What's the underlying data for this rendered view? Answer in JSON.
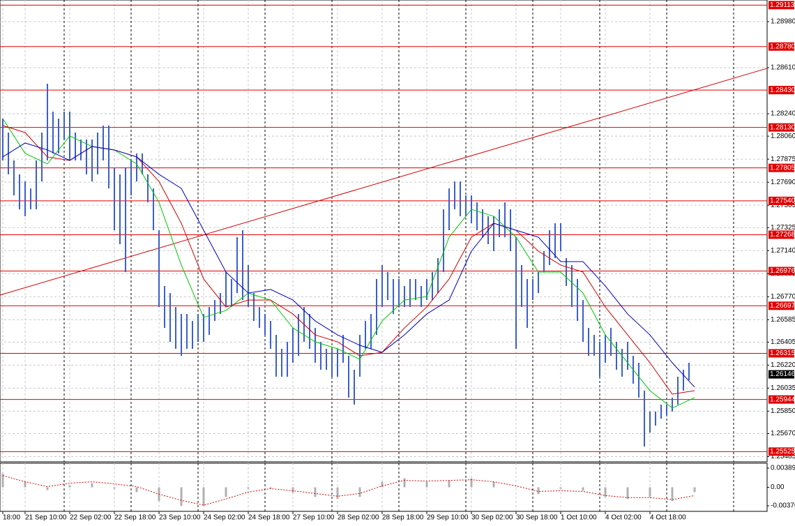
{
  "chart_data": {
    "type": "ohlc",
    "xlim": [
      -0.5,
      137
    ],
    "ylim": [
      1.25443,
      1.29154
    ],
    "yticks": [
      {
        "value": 1.2898,
        "label": "1.28980"
      },
      {
        "value": 1.2861,
        "label": "1.28610"
      },
      {
        "value": 1.2824,
        "label": "1.28240"
      },
      {
        "value": 1.2806,
        "label": "1.28060"
      },
      1.27875,
      {
        "value": 1.2769,
        "label": "1.27690"
      },
      1.27505,
      1.27325,
      {
        "value": 1.2714,
        "label": "1.27140"
      },
      1.26955,
      {
        "value": 1.2677,
        "label": "1.26770"
      },
      1.26585,
      1.26405,
      {
        "value": 1.2622,
        "label": "1.26220"
      },
      1.26035,
      {
        "value": 1.2585,
        "label": "1.25850"
      },
      {
        "value": 1.2567,
        "label": "1.25670"
      },
      1.25485
    ],
    "xticks": [
      {
        "value": 0,
        "label": "18:00"
      },
      {
        "value": 4,
        "label": "21 Sep 10:00"
      },
      {
        "value": 12,
        "label": "22 Sep 02:00"
      },
      {
        "value": 20,
        "label": "22 Sep 18:00"
      },
      {
        "value": 28,
        "label": "23 Sep 10:00"
      },
      {
        "value": 36,
        "label": "24 Sep 02:00"
      },
      {
        "value": 44,
        "label": "24 Sep 18:00"
      },
      {
        "value": 52,
        "label": "27 Sep 10:00"
      },
      {
        "value": 60,
        "label": "28 Sep 02:00"
      },
      {
        "value": 68,
        "label": "28 Sep 18:00"
      },
      {
        "value": 76,
        "label": "29 Sep 10:00"
      },
      {
        "value": 84,
        "label": "30 Sep 02:00"
      },
      {
        "value": 92,
        "label": "30 Sep 18:00"
      },
      {
        "value": 100,
        "label": "1 Oct 10:00"
      },
      {
        "value": 108,
        "label": "4 Oct 02:00"
      },
      {
        "value": 116,
        "label": "4 Oct 18:00"
      }
    ],
    "day_separators": [
      11,
      23,
      35,
      47,
      59,
      71,
      83,
      95,
      107,
      119,
      131
    ],
    "grid": true,
    "bars": {
      "color": "#3a5fcd",
      "high": [
        1.28201,
        1.28089,
        1.27865,
        1.27753,
        1.27696,
        1.2764,
        1.27865,
        1.28089,
        1.28481,
        1.28257,
        1.28201,
        1.28257,
        1.28257,
        1.28089,
        1.28033,
        1.28033,
        1.28033,
        1.28089,
        1.28145,
        1.28145,
        1.27809,
        1.27753,
        1.27809,
        1.27865,
        1.27921,
        1.27921,
        1.27753,
        1.2764,
        1.27304,
        1.26856,
        1.26799,
        1.26687,
        1.26631,
        1.26631,
        1.26575,
        1.26631,
        1.26631,
        1.26687,
        1.26743,
        1.26799,
        1.26968,
        1.26912,
        1.27248,
        1.27304,
        1.27024,
        1.26799,
        1.26687,
        1.26631,
        1.26575,
        1.26463,
        1.26351,
        1.26407,
        1.26519,
        1.26631,
        1.26687,
        1.26631,
        1.26519,
        1.26407,
        1.26351,
        1.26351,
        1.26351,
        1.26463,
        1.26295,
        1.26183,
        1.26463,
        1.26575,
        1.26631,
        1.26912,
        1.27024,
        1.26968,
        1.26912,
        1.26912,
        1.26856,
        1.26912,
        1.26912,
        1.26856,
        1.26912,
        1.26968,
        1.2708,
        1.27472,
        1.2764,
        1.27696,
        1.27696,
        1.27584,
        1.27584,
        1.27528,
        1.27472,
        1.27416,
        1.27416,
        1.27472,
        1.27528,
        1.27472,
        1.27248,
        1.27024,
        1.26912,
        1.26912,
        1.26968,
        1.27136,
        1.27304,
        1.2736,
        1.2736,
        1.2708,
        1.27024,
        1.26912,
        1.26743,
        1.26519,
        1.26463,
        1.26407,
        1.26463,
        1.26519,
        1.26407,
        1.26351,
        1.26407,
        1.26295,
        1.26239,
        1.26015,
        1.25847,
        1.25847,
        1.25903,
        1.25903,
        1.25959,
        1.26127,
        1.26183,
        1.26239
      ],
      "low": [
        1.27865,
        1.27753,
        1.27584,
        1.27472,
        1.27416,
        1.27472,
        1.27472,
        1.27696,
        1.27865,
        1.27921,
        1.27921,
        1.28033,
        1.27865,
        1.27865,
        1.27865,
        1.27753,
        1.27696,
        1.27753,
        1.27865,
        1.2764,
        1.27304,
        1.27192,
        1.26968,
        1.27584,
        1.27696,
        1.27753,
        1.27528,
        1.27304,
        1.26687,
        1.26519,
        1.26407,
        1.26351,
        1.26295,
        1.26351,
        1.26351,
        1.26407,
        1.26407,
        1.26463,
        1.26575,
        1.26631,
        1.26687,
        1.26687,
        1.26799,
        1.26743,
        1.26687,
        1.26575,
        1.26519,
        1.26463,
        1.26351,
        1.26127,
        1.26127,
        1.26127,
        1.26239,
        1.26295,
        1.26407,
        1.26351,
        1.26239,
        1.26183,
        1.26183,
        1.26127,
        1.26127,
        1.26239,
        1.25959,
        1.25903,
        1.26127,
        1.26351,
        1.26351,
        1.26463,
        1.26687,
        1.26743,
        1.26631,
        1.26687,
        1.26687,
        1.26687,
        1.26743,
        1.26687,
        1.26743,
        1.26743,
        1.26799,
        1.26968,
        1.27304,
        1.27472,
        1.27416,
        1.27416,
        1.2736,
        1.27304,
        1.27248,
        1.27192,
        1.27136,
        1.27248,
        1.27248,
        1.27136,
        1.26351,
        1.26687,
        1.26519,
        1.26743,
        1.26799,
        1.26968,
        1.27024,
        1.2708,
        1.27136,
        1.26856,
        1.26687,
        1.26575,
        1.26407,
        1.26295,
        1.26295,
        1.26127,
        1.26239,
        1.26295,
        1.26183,
        1.26127,
        1.26183,
        1.26071,
        1.25959,
        1.25566,
        1.25678,
        1.25734,
        1.2579,
        1.25818,
        1.25847,
        1.25903,
        1.26015,
        1.26099
      ]
    },
    "line_x": [
      0,
      4,
      8,
      12,
      16,
      20,
      24,
      28,
      32,
      36,
      40,
      44,
      48,
      52,
      56,
      60,
      64,
      68,
      72,
      76,
      80,
      84,
      88,
      92,
      96,
      100,
      104,
      108,
      112,
      116,
      120,
      124
    ],
    "lines": [
      {
        "color": "#00c800",
        "values": [
          1.28201,
          1.27921,
          1.27837,
          1.28061,
          1.27977,
          1.27949,
          1.27837,
          1.27528,
          1.27024,
          1.26603,
          1.26659,
          1.26799,
          1.26743,
          1.26519,
          1.26407,
          1.26351,
          1.26267,
          1.26575,
          1.26743,
          1.26771,
          1.27248,
          1.27472,
          1.27416,
          1.27248,
          1.26968,
          1.26968,
          1.26799,
          1.26463,
          1.26239,
          1.26015,
          1.25875,
          1.25959
        ]
      },
      {
        "color": "#d00000",
        "values": [
          1.28145,
          1.28089,
          1.27893,
          1.27865,
          1.27977,
          1.27949,
          1.27893,
          1.27696,
          1.2736,
          1.26912,
          1.26687,
          1.26743,
          1.26743,
          1.26631,
          1.26463,
          1.26407,
          1.26295,
          1.26323,
          1.26519,
          1.26687,
          1.26912,
          1.27248,
          1.2736,
          1.27304,
          1.27136,
          1.27024,
          1.26968,
          1.26687,
          1.26463,
          1.26239,
          1.25987,
          1.26015
        ]
      },
      {
        "color": "#0000c0",
        "values": [
          1.27893,
          1.28005,
          1.27949,
          1.27865,
          1.27977,
          1.27949,
          1.27893,
          1.27753,
          1.2764,
          1.27304,
          1.26968,
          1.26799,
          1.26828,
          1.26743,
          1.26575,
          1.26463,
          1.26379,
          1.26323,
          1.26463,
          1.26631,
          1.26743,
          1.27136,
          1.2736,
          1.27304,
          1.27248,
          1.27052,
          1.27052,
          1.26856,
          1.26631,
          1.26463,
          1.26239,
          1.26043
        ]
      }
    ],
    "levels": {
      "color": "#e00000",
      "values": [
        1.29113,
        {
          "value": 1.2878,
          "label": "1.28780"
        },
        {
          "value": 1.2843,
          "label": "1.28430"
        },
        {
          "value": 1.2813,
          "label": "1.28130"
        },
        1.27805,
        {
          "value": 1.2754,
          "label": "1.27540"
        },
        1.27268,
        1.26976,
        1.26697,
        1.26315,
        1.25944,
        1.25525
      ]
    },
    "trendline": {
      "color": "#d00000",
      "x": [
        -0.5,
        137
      ],
      "values": [
        1.26783,
        1.28605
      ]
    },
    "last_price": 1.26146,
    "oscillator": {
      "ylim": [
        -0.0049,
        0.0049
      ],
      "yticks": [
        0.003897,
        {
          "value": 0,
          "label": "0.00"
        },
        -0.00376
      ],
      "histogram": {
        "color": "#b0b0b0",
        "values": [
          0.0028,
          0.00112,
          -0.00056,
          0.00042,
          0.00084,
          -0.00028,
          -0.00098,
          -0.0028,
          -0.00378,
          -0.00378,
          -0.00196,
          -0.00028,
          -0.00028,
          -0.00112,
          -0.00196,
          -0.00238,
          -0.00196,
          0.00112,
          0.00182,
          0.00112,
          0.0014,
          0.00182,
          0.00112,
          0,
          -0.0014,
          -0.00028,
          -0.0007,
          -0.00196,
          -0.00238,
          -0.00196,
          -0.0028,
          -0.00098
        ]
      },
      "signal": {
        "color": "#e00000",
        "values": [
          0.00238,
          0.00112,
          0.00014,
          0.00084,
          0.00112,
          0.0007,
          0.00014,
          -0.0014,
          -0.00266,
          -0.00364,
          -0.00238,
          -0.00098,
          -0.00028,
          -0.0007,
          -0.00126,
          -0.00182,
          -0.00126,
          0.00028,
          0.0014,
          0.00126,
          0.0014,
          0.00154,
          0.00112,
          0.00028,
          -0.00084,
          -0.0007,
          -0.00084,
          -0.00168,
          -0.0021,
          -0.0021,
          -0.00252,
          -0.00168
        ]
      }
    }
  }
}
